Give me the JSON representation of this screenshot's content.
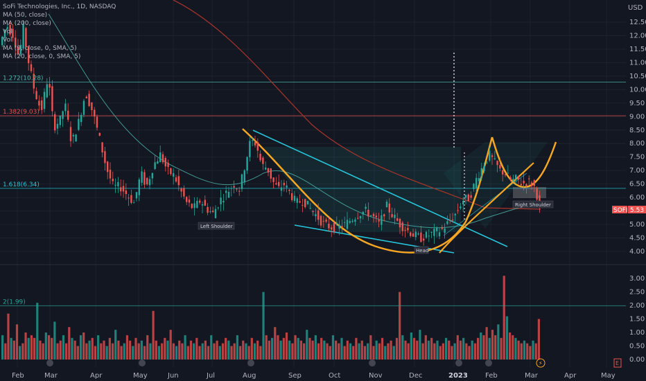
{
  "header": {
    "title": "SoFi Technologies, Inc., 1D, NASDAQ",
    "indicators": [
      "MA (50, close)",
      "MA (200, close)",
      "Vol",
      "Vol",
      "MA (9, close, 0, SMA, 5)",
      "MA (20, close, 0, SMA, 5)"
    ]
  },
  "colors": {
    "background": "#131722",
    "up": "#26a69a",
    "down": "#ef5350",
    "pattern": "#f5a623",
    "trendline": "#26c6da",
    "ma200": "#a0342a"
  },
  "chart_data": {
    "type": "candlestick",
    "currency_label": "USD",
    "price_axis": {
      "range": [
        3.6,
        13.2
      ],
      "ticks": [
        "12.50",
        "12.00",
        "11.50",
        "11.00",
        "10.50",
        "10.00",
        "9.50",
        "9.00",
        "8.50",
        "8.00",
        "7.50",
        "7.00",
        "6.50",
        "6.00",
        "5.50",
        "5.00",
        "4.50",
        "4.00"
      ]
    },
    "volume_axis": {
      "range": [
        0,
        3.0
      ],
      "ticks": [
        "3.00",
        "2.50",
        "2.00",
        "1.50",
        "1.00",
        "0.50",
        "0.00"
      ]
    },
    "time_axis": [
      "Feb",
      "Mar",
      "Apr",
      "May",
      "Jun",
      "Jul",
      "Aug",
      "Sep",
      "Oct",
      "Nov",
      "Dec",
      "2023",
      "Feb",
      "Mar",
      "Apr",
      "May"
    ],
    "fib_levels": [
      {
        "label": "1.272(10.28)",
        "value": 10.28
      },
      {
        "label": "1.382(9.03)",
        "value": 9.03
      },
      {
        "label": "1.618(6.34)",
        "value": 6.34
      }
    ],
    "volume_level": {
      "label": "2(1.99)",
      "value": 1.99
    },
    "last_price": {
      "ticker": "SOFI",
      "value": "5.53"
    },
    "annotations": [
      "Left Shoulder",
      "Head",
      "Right Shoulder"
    ],
    "price_path": [
      [
        0,
        11.5
      ],
      [
        12,
        12.4
      ],
      [
        22,
        12.0
      ],
      [
        30,
        11.2
      ],
      [
        36,
        12.3
      ],
      [
        44,
        11.0
      ],
      [
        52,
        10.0
      ],
      [
        62,
        9.2
      ],
      [
        72,
        10.5
      ],
      [
        80,
        8.6
      ],
      [
        90,
        8.9
      ],
      [
        96,
        9.5
      ],
      [
        106,
        8.0
      ],
      [
        116,
        8.8
      ],
      [
        126,
        9.9
      ],
      [
        136,
        9.2
      ],
      [
        146,
        8.2
      ],
      [
        156,
        7.1
      ],
      [
        166,
        6.4
      ],
      [
        176,
        6.4
      ],
      [
        186,
        6.1
      ],
      [
        196,
        5.8
      ],
      [
        206,
        6.9
      ],
      [
        214,
        6.4
      ],
      [
        224,
        7.2
      ],
      [
        234,
        7.6
      ],
      [
        244,
        7.0
      ],
      [
        254,
        6.8
      ],
      [
        264,
        6.2
      ],
      [
        272,
        5.8
      ],
      [
        282,
        5.6
      ],
      [
        292,
        5.9
      ],
      [
        300,
        5.6
      ],
      [
        310,
        5.4
      ],
      [
        320,
        5.9
      ],
      [
        330,
        6.2
      ],
      [
        340,
        6.5
      ],
      [
        348,
        6.3
      ],
      [
        356,
        7.2
      ],
      [
        364,
        8.1
      ],
      [
        372,
        8.0
      ],
      [
        380,
        7.2
      ],
      [
        388,
        7.1
      ],
      [
        396,
        6.6
      ],
      [
        404,
        6.3
      ],
      [
        412,
        6.5
      ],
      [
        420,
        6.2
      ],
      [
        430,
        5.8
      ],
      [
        440,
        5.9
      ],
      [
        450,
        5.6
      ],
      [
        460,
        5.3
      ],
      [
        470,
        5.0
      ],
      [
        480,
        4.9
      ],
      [
        490,
        4.9
      ],
      [
        500,
        5.0
      ],
      [
        510,
        5.2
      ],
      [
        520,
        5.4
      ],
      [
        530,
        5.5
      ],
      [
        540,
        5.3
      ],
      [
        550,
        5.0
      ],
      [
        560,
        5.7
      ],
      [
        570,
        5.3
      ],
      [
        580,
        5.0
      ],
      [
        590,
        4.8
      ],
      [
        600,
        4.6
      ],
      [
        610,
        4.5
      ],
      [
        620,
        4.6
      ],
      [
        630,
        4.7
      ],
      [
        640,
        4.8
      ],
      [
        650,
        5.1
      ],
      [
        660,
        5.4
      ],
      [
        670,
        5.9
      ],
      [
        680,
        6.0
      ],
      [
        690,
        6.7
      ],
      [
        700,
        7.2
      ],
      [
        708,
        7.6
      ],
      [
        716,
        7.3
      ],
      [
        724,
        7.0
      ],
      [
        732,
        6.9
      ],
      [
        740,
        6.6
      ],
      [
        748,
        6.7
      ],
      [
        756,
        6.5
      ],
      [
        764,
        6.6
      ],
      [
        770,
        6.5
      ],
      [
        776,
        6.3
      ],
      [
        780,
        5.6
      ]
    ],
    "volume_series": [
      0.9,
      0.6,
      1.7,
      0.8,
      0.7,
      1.3,
      0.5,
      0.6,
      1.0,
      0.8,
      0.9,
      0.8,
      2.1,
      0.7,
      0.6,
      1.0,
      0.9,
      0.8,
      1.4,
      0.6,
      0.7,
      0.9,
      0.6,
      1.2,
      0.8,
      0.7,
      0.5,
      0.9,
      1.0,
      0.6,
      0.7,
      0.8,
      0.5,
      0.9,
      0.6,
      0.7,
      0.5,
      0.8,
      0.6,
      1.1,
      0.7,
      0.5,
      0.6,
      0.9,
      0.7,
      0.5,
      0.8,
      0.6,
      0.7,
      0.5,
      0.9,
      0.6,
      1.8,
      0.7,
      0.5,
      0.6,
      0.8,
      0.7,
      1.1,
      0.6,
      0.5,
      0.7,
      0.6,
      0.9,
      0.5,
      0.7,
      0.6,
      0.8,
      0.5,
      0.6,
      0.7,
      0.5,
      0.9,
      0.6,
      0.7,
      0.5,
      0.6,
      0.8,
      0.7,
      0.5,
      0.6,
      0.9,
      0.5,
      0.7,
      0.6,
      0.5,
      0.8,
      0.6,
      0.7,
      0.5,
      2.5,
      0.9,
      0.7,
      0.8,
      1.2,
      0.9,
      0.7,
      0.8,
      1.0,
      0.7,
      0.6,
      0.9,
      0.8,
      0.7,
      0.6,
      1.1,
      0.8,
      0.7,
      0.9,
      0.6,
      0.8,
      0.7,
      0.6,
      0.5,
      0.9,
      0.7,
      0.6,
      0.8,
      0.5,
      0.7,
      0.6,
      0.5,
      0.8,
      0.6,
      0.7,
      0.5,
      0.6,
      0.9,
      0.5,
      0.7,
      0.6,
      0.8,
      0.5,
      0.6,
      0.7,
      0.5,
      0.8,
      2.5,
      0.9,
      0.7,
      0.6,
      1.0,
      0.8,
      0.7,
      1.1,
      0.6,
      0.9,
      0.7,
      0.8,
      0.6,
      0.7,
      0.5,
      0.6,
      0.8,
      0.7,
      0.5,
      0.6,
      0.9,
      0.7,
      0.8,
      0.6,
      0.5,
      0.7,
      0.6,
      0.8,
      1.0,
      0.9,
      1.2,
      0.8,
      1.1,
      0.9,
      1.3,
      0.8,
      3.1,
      1.6,
      1.0,
      0.9,
      0.8,
      0.7,
      0.6,
      0.7,
      0.6,
      0.5,
      0.7,
      0.6,
      1.5
    ],
    "pattern_curves": {
      "description_free": true
    }
  }
}
